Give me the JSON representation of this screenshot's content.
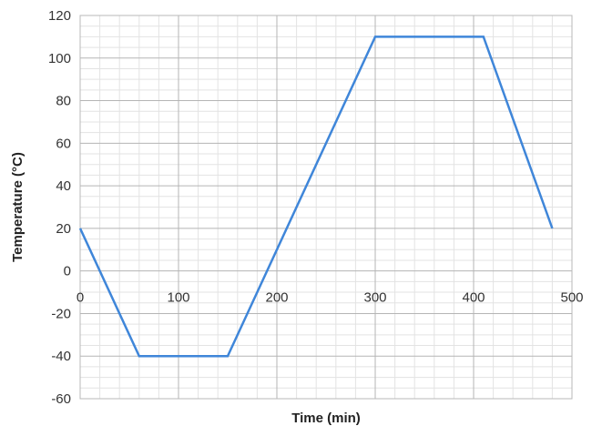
{
  "chart_data": {
    "type": "line",
    "title": "",
    "xlabel": "Time (min)",
    "ylabel": "Temperature (°C)",
    "xlim": [
      0,
      500
    ],
    "ylim": [
      -60,
      120
    ],
    "x_ticks": [
      0,
      100,
      200,
      300,
      400,
      500
    ],
    "y_ticks": [
      -60,
      -40,
      -20,
      0,
      20,
      40,
      60,
      80,
      100,
      120
    ],
    "grid": true,
    "legend": "none",
    "series": [
      {
        "color": "#3f86d9",
        "x": [
          0,
          60,
          150,
          300,
          410,
          480
        ],
        "y": [
          20,
          -40,
          -40,
          110,
          110,
          20
        ]
      }
    ]
  }
}
